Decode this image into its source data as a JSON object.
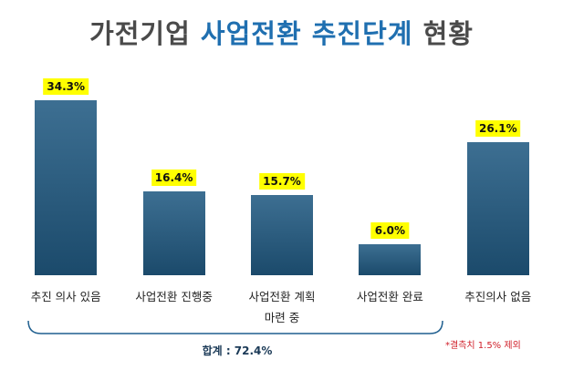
{
  "chart_data": {
    "type": "bar",
    "title": [
      "가전기업",
      "사업전환 추진단계",
      "현황"
    ],
    "categories": [
      "추진 의사 있음",
      "사업전환 진행중",
      "사업전환 계획\n마련 중",
      "사업전환 완료",
      "추진의사 없음"
    ],
    "values": [
      34.3,
      16.4,
      15.7,
      6.0,
      26.1
    ],
    "value_labels": [
      "34.3%",
      "16.4%",
      "15.7%",
      "6.0%",
      "26.1%"
    ],
    "annotations": [
      "합계 : 72.4%",
      "*결측치 1.5% 제외"
    ]
  }
}
